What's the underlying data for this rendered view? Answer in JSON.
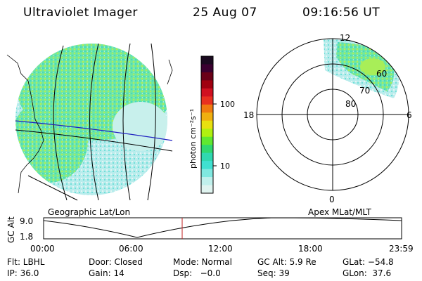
{
  "header": {
    "instrument": "Ultraviolet Imager",
    "date": "25 Aug 07",
    "time": "09:16:56 UT"
  },
  "colorbar": {
    "unit_label": "photon cm⁻²s⁻¹",
    "ticks": [
      "100",
      "10"
    ],
    "colors": [
      "#1a0a20",
      "#3a0030",
      "#6a0018",
      "#a00010",
      "#d01020",
      "#e83020",
      "#f07a10",
      "#f0b010",
      "#e8e010",
      "#b0f010",
      "#60e830",
      "#30d870",
      "#30d8b0",
      "#40e0d0",
      "#80e8e0",
      "#c0f0ec",
      "#e0f4f0"
    ]
  },
  "left_map": {
    "caption": "Geographic Lat/Lon"
  },
  "right_polar": {
    "caption": "Apex MLat/MLT",
    "mlt_labels": {
      "top": "12",
      "bottom": "0",
      "left": "18",
      "right": "6"
    },
    "lat_labels": [
      "60",
      "70",
      "80"
    ]
  },
  "altitude_plot": {
    "ylabel": "GC Alt",
    "y_ticks": [
      "9.0",
      "1.8"
    ],
    "x_ticks": [
      "00:00",
      "06:00",
      "12:00",
      "18:00",
      "23:59"
    ],
    "marker_time": "09:16"
  },
  "status": {
    "row1": {
      "flt": "Flt: LBHL",
      "door": "Door: Closed",
      "mode": "Mode: Normal",
      "gc_alt": "GC Alt: 5.9 Re",
      "glat": "GLat: −54.8"
    },
    "row2": {
      "ip": "IP: 36.0",
      "gain": "Gain: 14",
      "dsp": "Dsp:   −0.0",
      "seq": "Seq: 39",
      "glon": "GLon:  37.6"
    }
  },
  "colors": {
    "grid": "#000000",
    "blue_line": "#2020c0",
    "time_marker": "#c02020"
  }
}
